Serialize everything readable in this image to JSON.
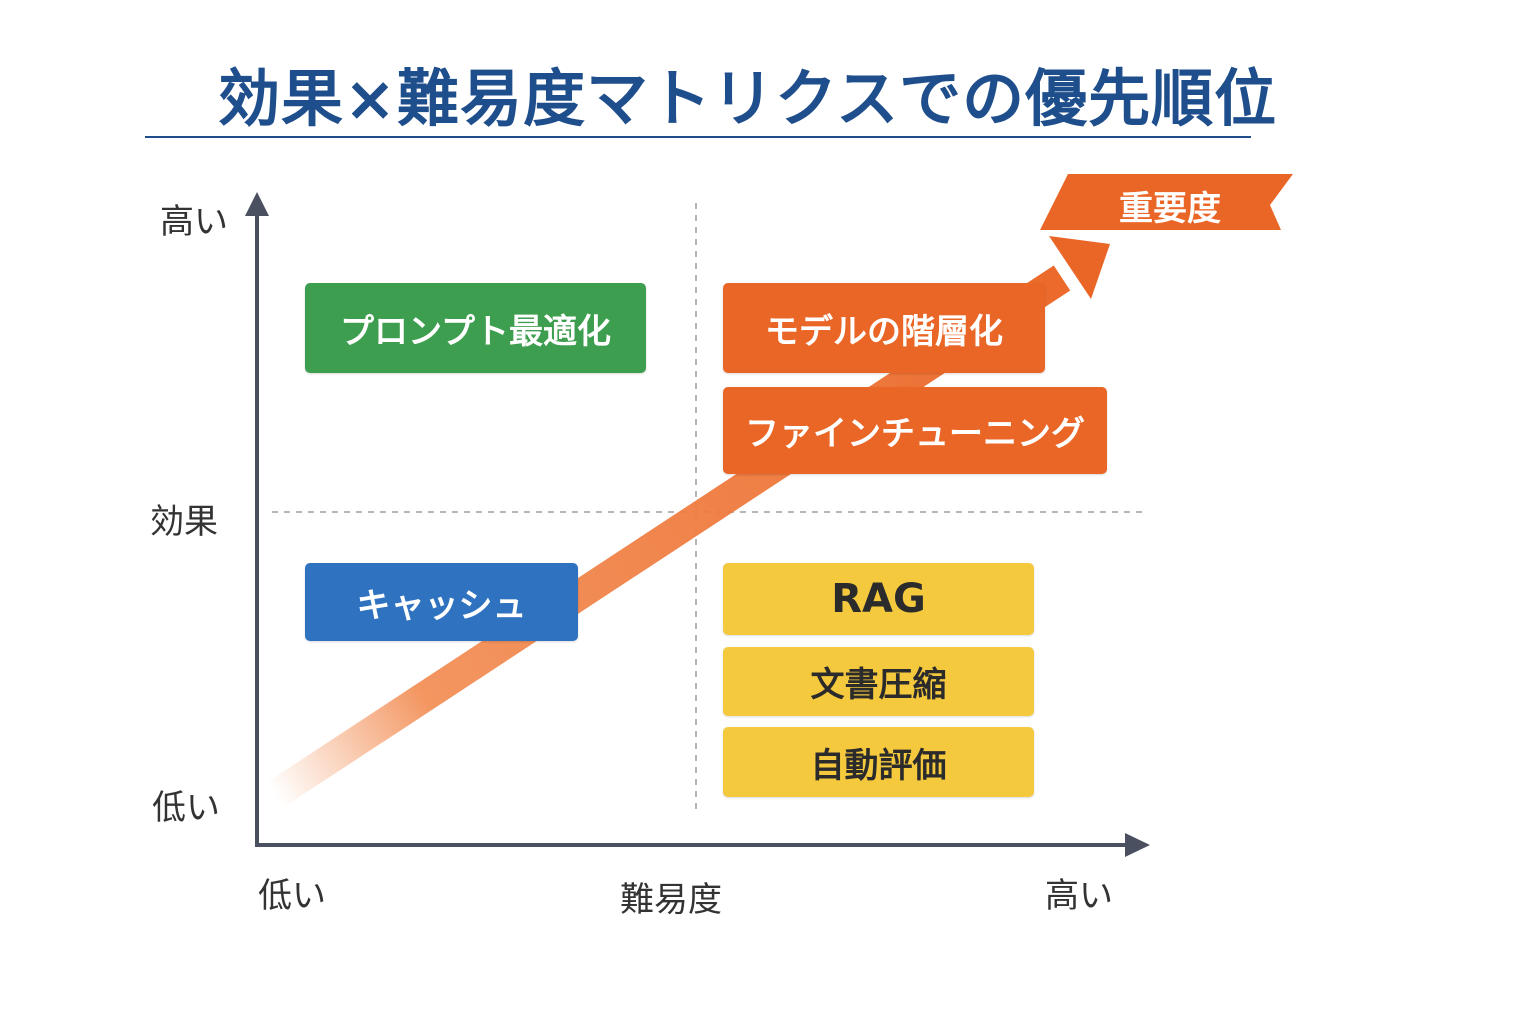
{
  "title": "効果×難易度マトリクスでの優先順位",
  "y_axis": {
    "high": "高い",
    "name": "効果",
    "low": "低い"
  },
  "x_axis": {
    "low": "低い",
    "name": "難易度",
    "high": "高い"
  },
  "arrow_label": "重要度",
  "items": {
    "prompt_optimization": "プロンプト最適化",
    "model_tiering": "モデルの階層化",
    "fine_tuning": "ファインチューニング",
    "cache": "キャッシュ",
    "rag": "RAG",
    "doc_compression": "文書圧縮",
    "auto_eval": "自動評価"
  },
  "colors": {
    "title": "#1f4e8c",
    "green": "#3e9e4f",
    "blue": "#2f73c0",
    "orange": "#ea6627",
    "yellow": "#f5c93d",
    "axis": "#4a5060"
  }
}
